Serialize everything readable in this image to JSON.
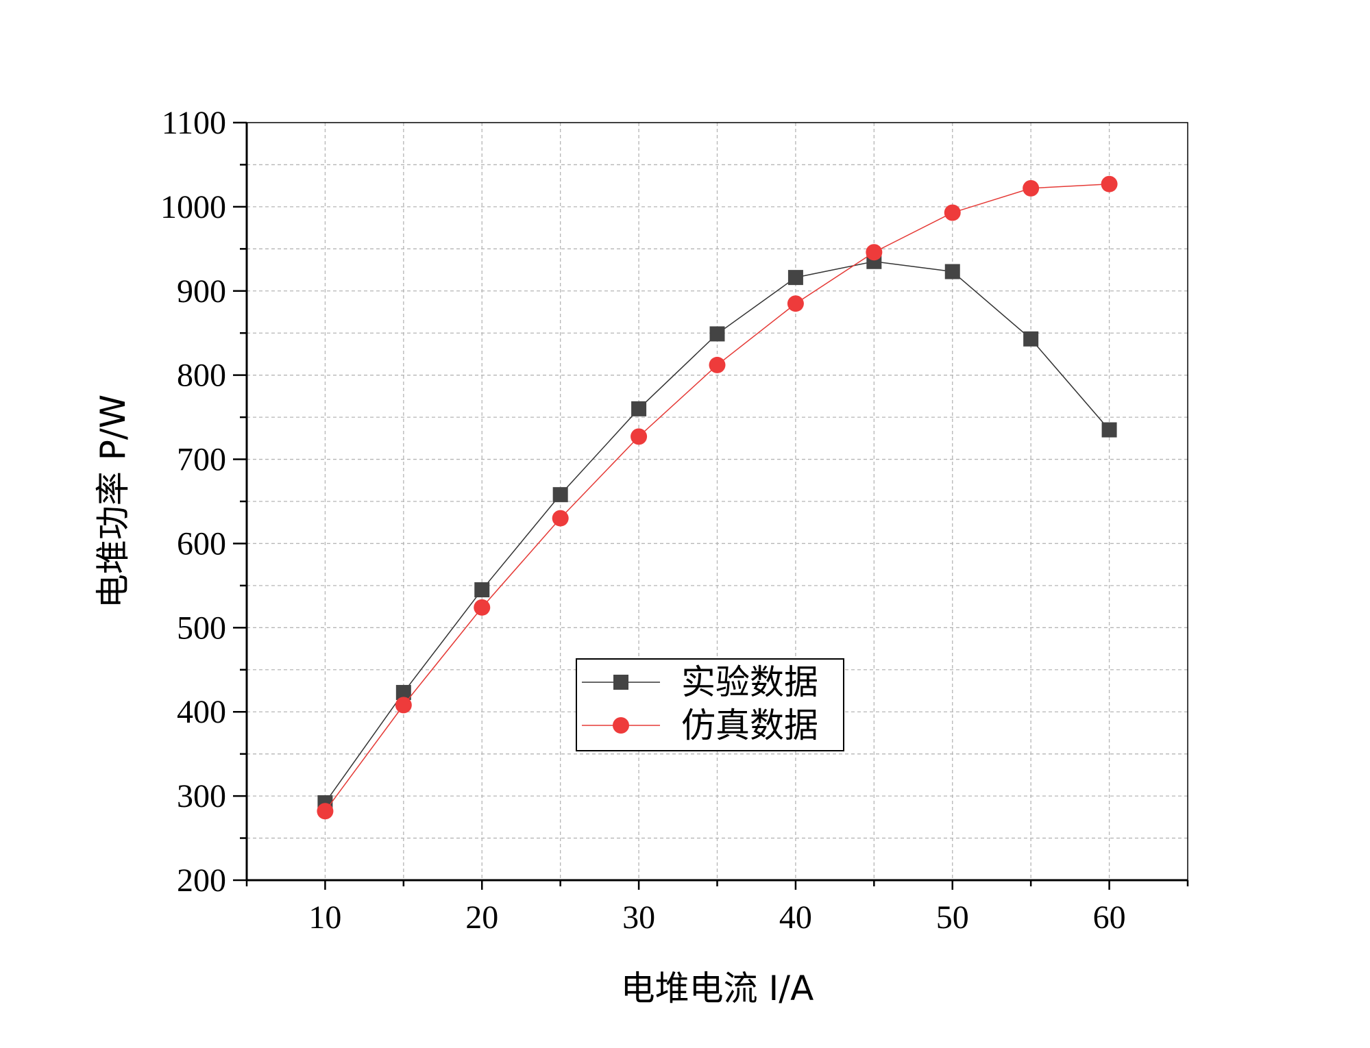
{
  "chart_data": {
    "type": "line",
    "xlabel": "电堆电流  I/A",
    "ylabel": "电堆功率  P/W",
    "xlim": [
      5,
      65
    ],
    "ylim": [
      200,
      1100
    ],
    "x_ticks": [
      10,
      20,
      30,
      40,
      50,
      60
    ],
    "y_ticks": [
      200,
      300,
      400,
      500,
      600,
      700,
      800,
      900,
      1000,
      1100
    ],
    "grid": true,
    "legend_position": "center",
    "x": [
      10,
      15,
      20,
      25,
      30,
      35,
      40,
      45,
      50,
      55,
      60
    ],
    "series": [
      {
        "name": "实验数据",
        "marker": "square",
        "color": "#444444",
        "line_color": "#333333",
        "values": [
          292,
          423,
          545,
          658,
          760,
          849,
          916,
          935,
          923,
          843,
          735
        ]
      },
      {
        "name": "仿真数据",
        "marker": "circle",
        "color": "#ee3b3b",
        "line_color": "#e53935",
        "values": [
          282,
          408,
          524,
          630,
          727,
          812,
          885,
          946,
          993,
          1022,
          1027
        ]
      }
    ]
  }
}
